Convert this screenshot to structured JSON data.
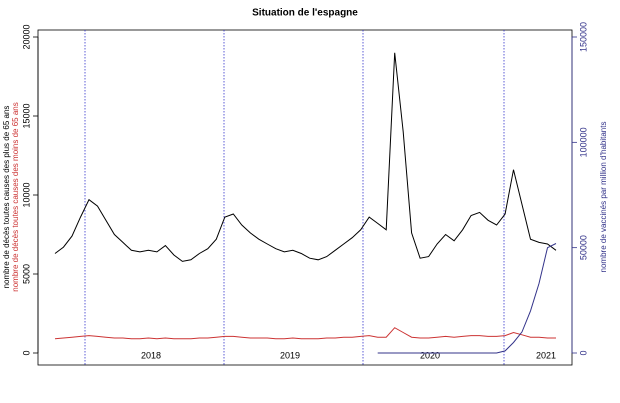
{
  "chart_data": {
    "type": "line",
    "title": "Situation de l'espagne",
    "ylabel": "nombre de décès toutes causes des plus de 65 ans",
    "ylabel2": "nombre de décès toutes causes des moins de 65 ans",
    "y2label": "nombre de vaccinés par million d'habitants",
    "x_labels": [
      "2018",
      "2019",
      "2020",
      "2021"
    ],
    "ylim": [
      0,
      20000
    ],
    "yticks": [
      0,
      5000,
      10000,
      15000,
      20000
    ],
    "y2lim": [
      0,
      150000
    ],
    "y2ticks": [
      0,
      50000,
      100000,
      150000
    ],
    "series": [
      {
        "name": "nombre de décès toutes causes des plus de 65 ans",
        "color": "#000000",
        "values": [
          6300,
          6700,
          7400,
          8600,
          9700,
          9300,
          8400,
          7500,
          7000,
          6500,
          6400,
          6500,
          6400,
          6800,
          6200,
          5800,
          5900,
          6300,
          6600,
          7200,
          8600,
          8800,
          8100,
          7600,
          7200,
          6900,
          6600,
          6400,
          6500,
          6300,
          6000,
          5900,
          6100,
          6500,
          6900,
          7300,
          7800,
          8600,
          8200,
          7800,
          19000,
          14000,
          7600,
          6000,
          6100,
          6900,
          7500,
          7100,
          7800,
          8700,
          8900,
          8400,
          8100,
          8800,
          11600,
          9400,
          7200,
          7000,
          6900,
          6500
        ]
      },
      {
        "name": "nombre de décès toutes causes des moins de 65 ans",
        "color": "#cc3333",
        "values": [
          900,
          950,
          1000,
          1050,
          1100,
          1050,
          1000,
          950,
          950,
          900,
          900,
          950,
          900,
          950,
          900,
          900,
          900,
          950,
          950,
          1000,
          1050,
          1050,
          1000,
          950,
          950,
          950,
          900,
          900,
          950,
          900,
          900,
          900,
          950,
          950,
          1000,
          1000,
          1050,
          1100,
          1000,
          1000,
          1600,
          1300,
          1000,
          950,
          950,
          1000,
          1050,
          1000,
          1050,
          1100,
          1100,
          1050,
          1050,
          1100,
          1300,
          1150,
          1000,
          1000,
          950,
          950
        ]
      },
      {
        "name": "nombre de vaccinés par million d'habitants",
        "color": "#33338a",
        "axis": "y2",
        "values": [
          null,
          null,
          null,
          null,
          null,
          null,
          null,
          null,
          null,
          null,
          null,
          null,
          null,
          null,
          null,
          null,
          null,
          null,
          null,
          null,
          null,
          null,
          null,
          null,
          null,
          null,
          null,
          null,
          null,
          null,
          null,
          null,
          null,
          null,
          null,
          null,
          null,
          null,
          0,
          0,
          0,
          0,
          0,
          0,
          0,
          0,
          0,
          0,
          0,
          0,
          0,
          0,
          0,
          1000,
          5000,
          10000,
          20000,
          33000,
          50000,
          52000
        ]
      }
    ]
  }
}
